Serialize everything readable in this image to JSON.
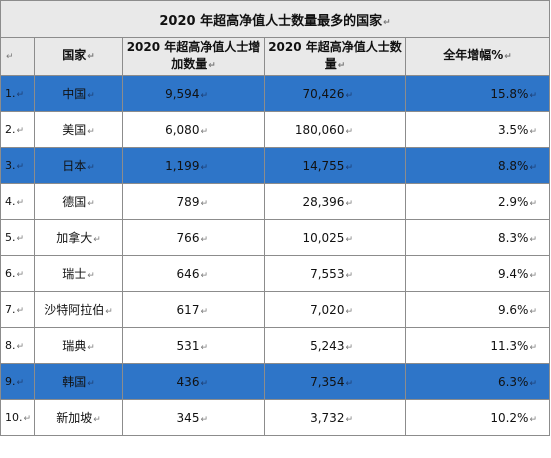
{
  "title": "2020 年超高净值人士数量最多的国家",
  "columns": {
    "index": "",
    "country": "国家",
    "added": "2020 年超高净值人士增加数量",
    "total": "2020 年超高净值人士数量",
    "growth": "全年增幅%"
  },
  "para_mark": "↵",
  "highlight_color": "#2e75c8",
  "rows": [
    {
      "rank": "1.",
      "country": "中国",
      "added": "9,594",
      "total": "70,426",
      "growth": "15.8%",
      "highlight": true
    },
    {
      "rank": "2.",
      "country": "美国",
      "added": "6,080",
      "total": "180,060",
      "growth": "3.5%",
      "highlight": false
    },
    {
      "rank": "3.",
      "country": "日本",
      "added": "1,199",
      "total": "14,755",
      "growth": "8.8%",
      "highlight": true
    },
    {
      "rank": "4.",
      "country": "德国",
      "added": "789",
      "total": "28,396",
      "growth": "2.9%",
      "highlight": false
    },
    {
      "rank": "5.",
      "country": "加拿大",
      "added": "766",
      "total": "10,025",
      "growth": "8.3%",
      "highlight": false
    },
    {
      "rank": "6.",
      "country": "瑞士",
      "added": "646",
      "total": "7,553",
      "growth": "9.4%",
      "highlight": false
    },
    {
      "rank": "7.",
      "country": "沙特阿拉伯",
      "added": "617",
      "total": "7,020",
      "growth": "9.6%",
      "highlight": false
    },
    {
      "rank": "8.",
      "country": "瑞典",
      "added": "531",
      "total": "5,243",
      "growth": "11.3%",
      "highlight": false
    },
    {
      "rank": "9.",
      "country": "韩国",
      "added": "436",
      "total": "7,354",
      "growth": "6.3%",
      "highlight": true
    },
    {
      "rank": "10.",
      "country": "新加坡",
      "added": "345",
      "total": "3,732",
      "growth": "10.2%",
      "highlight": false
    }
  ]
}
